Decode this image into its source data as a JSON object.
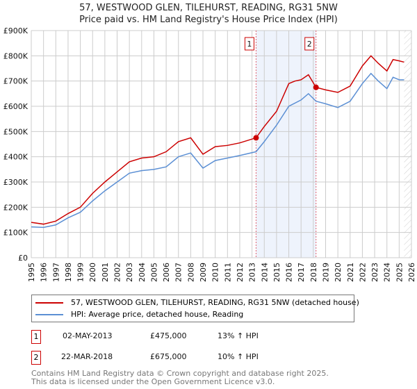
{
  "chart_data": {
    "type": "line",
    "title": "57, WESTWOOD GLEN, TILEHURST, READING, RG31 5NW",
    "subtitle": "Price paid vs. HM Land Registry's House Price Index (HPI)",
    "xlim": [
      1995,
      2026
    ],
    "ylim": [
      0,
      900000
    ],
    "yticks": [
      0,
      100000,
      200000,
      300000,
      400000,
      500000,
      600000,
      700000,
      800000,
      900000
    ],
    "ytick_labels": [
      "£0",
      "£100K",
      "£200K",
      "£300K",
      "£400K",
      "£500K",
      "£600K",
      "£700K",
      "£800K",
      "£900K"
    ],
    "xticks": [
      "1995",
      "1996",
      "1997",
      "1998",
      "1999",
      "2000",
      "2001",
      "2002",
      "2003",
      "2004",
      "2005",
      "2006",
      "2007",
      "2008",
      "2009",
      "2010",
      "2011",
      "2012",
      "2013",
      "2014",
      "2015",
      "2016",
      "2017",
      "2018",
      "2019",
      "2020",
      "2021",
      "2022",
      "2023",
      "2024",
      "2025",
      "2026"
    ],
    "grid": true,
    "series": [
      {
        "name": "57, WESTWOOD GLEN, TILEHURST, READING, RG31 5NW (detached house)",
        "color": "#cc0000",
        "x": [
          1995,
          1996,
          1997,
          1998,
          1999,
          2000,
          2001,
          2002,
          2003,
          2004,
          2005,
          2006,
          2007,
          2008,
          2009,
          2010,
          2011,
          2012,
          2013.33,
          2014,
          2015,
          2016,
          2016.5,
          2017,
          2017.6,
          2018.22,
          2019,
          2020,
          2021,
          2022,
          2022.7,
          2023.3,
          2024,
          2024.5,
          2025,
          2025.4
        ],
        "y": [
          140000,
          133000,
          145000,
          175000,
          200000,
          255000,
          300000,
          340000,
          380000,
          395000,
          400000,
          420000,
          460000,
          475000,
          410000,
          440000,
          445000,
          455000,
          475000,
          520000,
          580000,
          690000,
          700000,
          705000,
          725000,
          675000,
          665000,
          655000,
          680000,
          760000,
          800000,
          770000,
          740000,
          785000,
          780000,
          775000
        ]
      },
      {
        "name": "HPI: Average price, detached house, Reading",
        "color": "#5b8fd4",
        "x": [
          1995,
          1996,
          1997,
          1998,
          1999,
          2000,
          2001,
          2002,
          2003,
          2004,
          2005,
          2006,
          2007,
          2008,
          2009,
          2010,
          2011,
          2012,
          2013.33,
          2014,
          2015,
          2016,
          2017,
          2017.6,
          2018.22,
          2019,
          2020,
          2021,
          2022,
          2022.7,
          2023.3,
          2024,
          2024.5,
          2025,
          2025.4
        ],
        "y": [
          122000,
          120000,
          130000,
          158000,
          180000,
          225000,
          265000,
          300000,
          335000,
          345000,
          350000,
          360000,
          400000,
          415000,
          355000,
          385000,
          395000,
          405000,
          420000,
          460000,
          525000,
          600000,
          625000,
          650000,
          620000,
          610000,
          595000,
          620000,
          690000,
          730000,
          700000,
          670000,
          715000,
          705000,
          705000
        ]
      }
    ],
    "annotations": [
      {
        "label": "1",
        "x": 2013.33,
        "y": 475000,
        "date": "02-MAY-2013",
        "price": "£475,000",
        "hpi": "13% ↑ HPI"
      },
      {
        "label": "2",
        "x": 2018.22,
        "y": 675000,
        "date": "22-MAR-2018",
        "price": "£675,000",
        "hpi": "10% ↑ HPI"
      }
    ],
    "legend_placement": "bottom"
  },
  "footer": [
    "Contains HM Land Registry data © Crown copyright and database right 2025.",
    "This data is licensed under the Open Government Licence v3.0."
  ]
}
